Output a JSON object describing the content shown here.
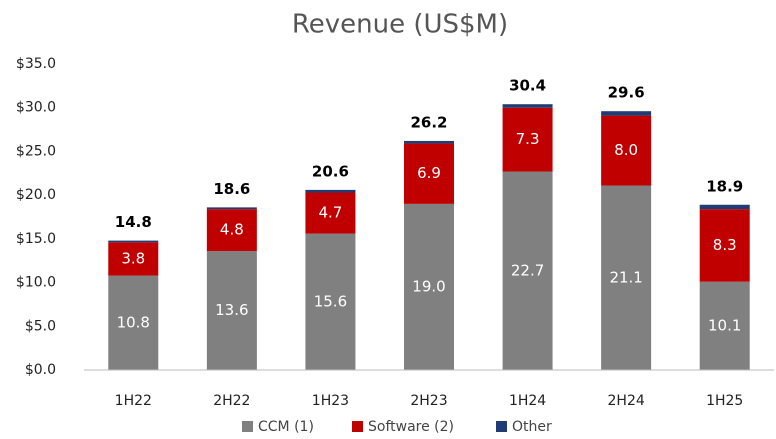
{
  "chart_data": {
    "type": "stacked_bar",
    "title": "Revenue (US$M)",
    "categories": [
      "1H22",
      "2H22",
      "1H23",
      "2H23",
      "1H24",
      "2H24",
      "1H25"
    ],
    "series": [
      {
        "name": "CCM (1)",
        "color": "#808080",
        "values": [
          10.8,
          13.6,
          15.6,
          19.0,
          22.7,
          21.1,
          10.1
        ],
        "value_labels": [
          "10.8",
          "13.6",
          "15.6",
          "19.0",
          "22.7",
          "21.1",
          "10.1"
        ]
      },
      {
        "name": "Software (2)",
        "color": "#c00000",
        "values": [
          3.8,
          4.8,
          4.7,
          6.9,
          7.3,
          8.0,
          8.3
        ],
        "value_labels": [
          "3.8",
          "4.8",
          "4.7",
          "6.9",
          "7.3",
          "8.0",
          "8.3"
        ]
      },
      {
        "name": "Other",
        "color": "#1f3c74",
        "values": [
          0.2,
          0.2,
          0.3,
          0.3,
          0.4,
          0.5,
          0.5
        ]
      }
    ],
    "totals": [
      14.8,
      18.6,
      20.6,
      26.2,
      30.4,
      29.6,
      18.9
    ],
    "ylim": [
      0,
      35
    ],
    "yticks": [
      {
        "value": 0,
        "label": "$0.0"
      },
      {
        "value": 5,
        "label": "$5.0"
      },
      {
        "value": 10,
        "label": "$10.0"
      },
      {
        "value": 15,
        "label": "$15.0"
      },
      {
        "value": 20,
        "label": "$20.0"
      },
      {
        "value": 25,
        "label": "$25.0"
      },
      {
        "value": 30,
        "label": "$30.0"
      },
      {
        "value": 35,
        "label": "$35.0"
      }
    ],
    "grid": false,
    "legend": "bottom"
  }
}
